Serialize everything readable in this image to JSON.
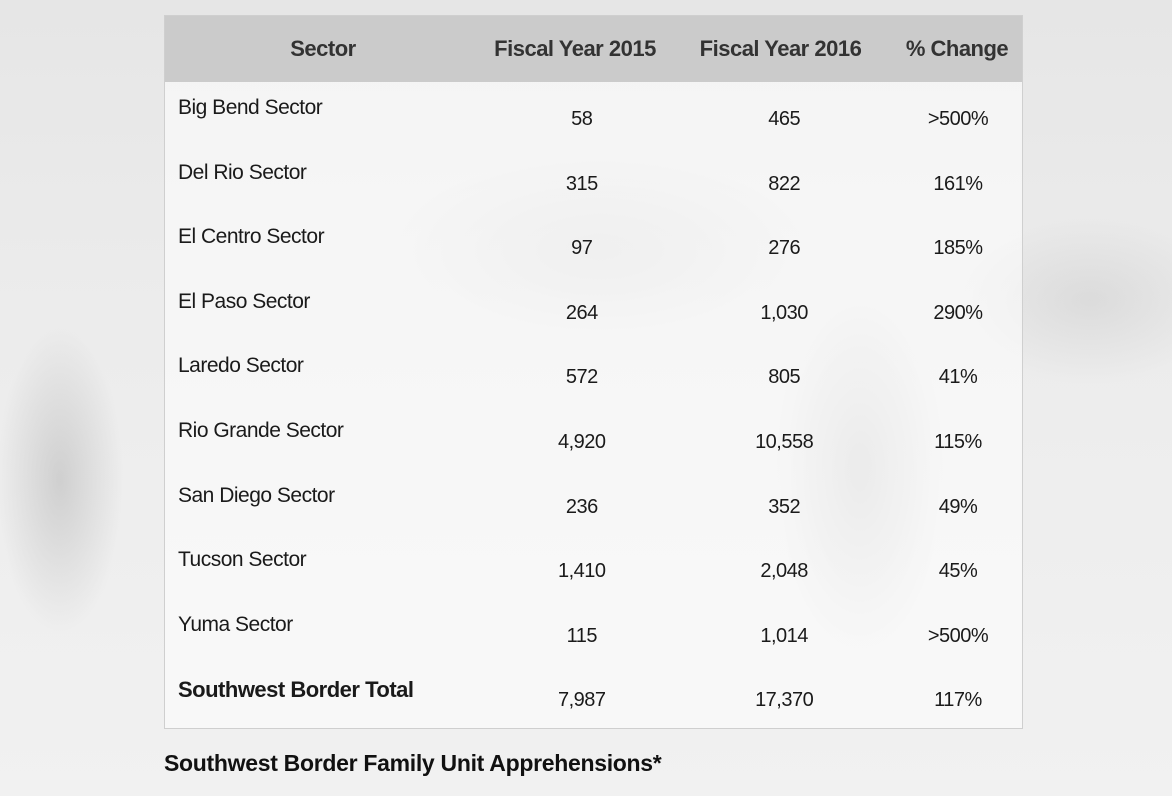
{
  "table": {
    "headers": [
      "Sector",
      "Fiscal Year 2015",
      "Fiscal Year 2016",
      "% Change"
    ],
    "rows": [
      [
        "Big Bend Sector",
        "58",
        "465",
        ">500%"
      ],
      [
        "Del Rio Sector",
        "315",
        "822",
        "161%"
      ],
      [
        "El Centro Sector",
        "97",
        "276",
        "185%"
      ],
      [
        "El Paso Sector",
        "264",
        "1,030",
        "290%"
      ],
      [
        "Laredo Sector",
        "572",
        "805",
        "41%"
      ],
      [
        "Rio Grande Sector",
        "4,920",
        "10,558",
        "115%"
      ],
      [
        "San Diego Sector",
        "236",
        "352",
        "49%"
      ],
      [
        "Tucson Sector",
        "1,410",
        "2,048",
        "45%"
      ],
      [
        "Yuma Sector",
        "115",
        "1,014",
        ">500%"
      ]
    ],
    "total": [
      "Southwest Border Total",
      "7,987",
      "17,370",
      "117%"
    ]
  },
  "caption": "Southwest Border Family Unit Apprehensions*"
}
